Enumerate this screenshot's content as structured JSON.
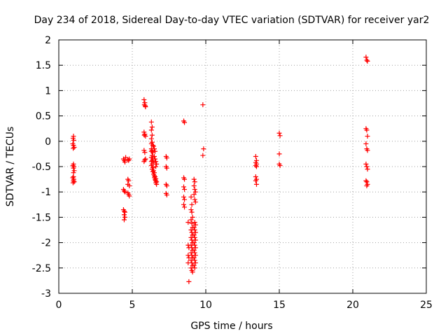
{
  "chart_data": {
    "type": "scatter",
    "title": "Day 234 of 2018, Sidereal Day-to-day VTEC variation (SDTVAR) for receiver yar2",
    "xlabel": "GPS time / hours",
    "ylabel": "SDTVAR / TECUs",
    "xlim": [
      0,
      25
    ],
    "ylim": [
      -3,
      2
    ],
    "grid": true,
    "marker": "+",
    "color": "#ff0000",
    "x_ticks": [
      0,
      5,
      10,
      15,
      20,
      25
    ],
    "x_tick_labels": [
      "0",
      "5",
      "10",
      "15",
      "20",
      "25"
    ],
    "y_ticks": [
      -3,
      -2.5,
      -2,
      -1.5,
      -1,
      -0.5,
      0,
      0.5,
      1,
      1.5,
      2
    ],
    "y_tick_labels": [
      "-3",
      "-2.5",
      "-2",
      "-1.5",
      "-1",
      "-0.5",
      "0",
      "0.5",
      "1",
      "1.5",
      "2"
    ],
    "points": [
      [
        1.0,
        0.1
      ],
      [
        0.97,
        0.06
      ],
      [
        1.02,
        0.02
      ],
      [
        0.95,
        -0.05
      ],
      [
        1.0,
        -0.08
      ],
      [
        1.05,
        -0.12
      ],
      [
        0.98,
        -0.14
      ],
      [
        1.0,
        -0.45
      ],
      [
        0.96,
        -0.48
      ],
      [
        1.03,
        -0.5
      ],
      [
        1.0,
        -0.53
      ],
      [
        1.05,
        -0.58
      ],
      [
        1.0,
        -0.62
      ],
      [
        1.0,
        -0.7
      ],
      [
        0.95,
        -0.72
      ],
      [
        1.02,
        -0.75
      ],
      [
        1.0,
        -0.78
      ],
      [
        1.05,
        -0.8
      ],
      [
        0.97,
        -0.82
      ],
      [
        4.4,
        -0.35
      ],
      [
        4.45,
        -0.38
      ],
      [
        4.5,
        -0.41
      ],
      [
        4.55,
        -0.32
      ],
      [
        4.4,
        -0.95
      ],
      [
        4.45,
        -0.98
      ],
      [
        4.5,
        -1.0
      ],
      [
        4.4,
        -1.35
      ],
      [
        4.45,
        -1.38
      ],
      [
        4.5,
        -1.4
      ],
      [
        4.45,
        -1.45
      ],
      [
        4.5,
        -1.5
      ],
      [
        4.45,
        -1.55
      ],
      [
        4.7,
        -0.36
      ],
      [
        4.75,
        -0.38
      ],
      [
        4.8,
        -0.35
      ],
      [
        4.7,
        -0.75
      ],
      [
        4.75,
        -0.78
      ],
      [
        4.7,
        -0.85
      ],
      [
        4.8,
        -0.88
      ],
      [
        4.7,
        -1.02
      ],
      [
        4.75,
        -1.05
      ],
      [
        4.8,
        -1.08
      ],
      [
        5.8,
        0.82
      ],
      [
        5.85,
        0.76
      ],
      [
        5.82,
        0.72
      ],
      [
        5.88,
        0.7
      ],
      [
        5.9,
        0.68
      ],
      [
        5.8,
        0.18
      ],
      [
        5.85,
        0.14
      ],
      [
        5.82,
        0.12
      ],
      [
        5.9,
        0.1
      ],
      [
        5.8,
        -0.18
      ],
      [
        5.85,
        -0.22
      ],
      [
        5.9,
        -0.35
      ],
      [
        5.85,
        -0.37
      ],
      [
        5.8,
        -0.4
      ],
      [
        6.3,
        0.38
      ],
      [
        6.35,
        0.28
      ],
      [
        6.3,
        0.22
      ],
      [
        6.35,
        0.12
      ],
      [
        6.3,
        0.05
      ],
      [
        6.35,
        -0.02
      ],
      [
        6.3,
        -0.05
      ],
      [
        6.4,
        -0.08
      ],
      [
        6.3,
        -0.15
      ],
      [
        6.35,
        -0.18
      ],
      [
        6.3,
        -0.2
      ],
      [
        6.4,
        -0.22
      ],
      [
        6.35,
        -0.28
      ],
      [
        6.3,
        -0.32
      ],
      [
        6.4,
        -0.35
      ],
      [
        6.35,
        -0.38
      ],
      [
        6.3,
        -0.4
      ],
      [
        6.45,
        -0.42
      ],
      [
        6.35,
        -0.45
      ],
      [
        6.3,
        -0.48
      ],
      [
        6.4,
        -0.52
      ],
      [
        6.35,
        -0.55
      ],
      [
        6.45,
        -0.58
      ],
      [
        6.4,
        -0.6
      ],
      [
        6.5,
        -0.62
      ],
      [
        6.45,
        -0.65
      ],
      [
        6.5,
        -0.68
      ],
      [
        6.55,
        -0.7
      ],
      [
        6.5,
        -0.72
      ],
      [
        6.6,
        -0.74
      ],
      [
        6.55,
        -0.76
      ],
      [
        6.6,
        -0.78
      ],
      [
        6.65,
        -0.8
      ],
      [
        6.6,
        -0.82
      ],
      [
        6.65,
        -0.85
      ],
      [
        6.5,
        -0.3
      ],
      [
        6.55,
        -0.35
      ],
      [
        6.6,
        -0.4
      ],
      [
        6.65,
        -0.45
      ],
      [
        6.6,
        -0.5
      ],
      [
        6.45,
        -0.1
      ],
      [
        6.5,
        -0.15
      ],
      [
        6.55,
        -0.2
      ],
      [
        7.3,
        -0.3
      ],
      [
        7.35,
        -0.33
      ],
      [
        7.3,
        -0.5
      ],
      [
        7.35,
        -0.53
      ],
      [
        7.3,
        -0.85
      ],
      [
        7.35,
        -0.88
      ],
      [
        7.3,
        -1.03
      ],
      [
        7.35,
        -1.06
      ],
      [
        8.5,
        0.4
      ],
      [
        8.55,
        0.37
      ],
      [
        8.5,
        -0.72
      ],
      [
        8.55,
        -0.75
      ],
      [
        8.5,
        -0.9
      ],
      [
        8.55,
        -0.95
      ],
      [
        8.5,
        -1.1
      ],
      [
        8.55,
        -1.15
      ],
      [
        8.5,
        -1.25
      ],
      [
        8.55,
        -1.3
      ],
      [
        8.8,
        -1.6
      ],
      [
        8.8,
        -2.05
      ],
      [
        8.85,
        -2.1
      ],
      [
        8.8,
        -2.25
      ],
      [
        8.85,
        -2.3
      ],
      [
        8.8,
        -2.4
      ],
      [
        8.85,
        -2.77
      ],
      [
        9.0,
        -1.1
      ],
      [
        9.05,
        -1.25
      ],
      [
        9.0,
        -1.35
      ],
      [
        9.05,
        -1.4
      ],
      [
        9.1,
        -1.5
      ],
      [
        9.0,
        -1.55
      ],
      [
        9.05,
        -1.62
      ],
      [
        9.1,
        -1.7
      ],
      [
        9.0,
        -1.75
      ],
      [
        9.05,
        -1.8
      ],
      [
        9.1,
        -1.85
      ],
      [
        9.0,
        -1.9
      ],
      [
        9.05,
        -1.95
      ],
      [
        9.1,
        -2.0
      ],
      [
        9.0,
        -2.05
      ],
      [
        9.05,
        -2.1
      ],
      [
        9.1,
        -2.15
      ],
      [
        9.0,
        -2.2
      ],
      [
        9.05,
        -2.25
      ],
      [
        9.1,
        -2.3
      ],
      [
        9.0,
        -2.35
      ],
      [
        9.05,
        -2.4
      ],
      [
        9.1,
        -2.45
      ],
      [
        9.0,
        -2.5
      ],
      [
        9.05,
        -2.55
      ],
      [
        9.1,
        -2.58
      ],
      [
        9.2,
        -0.75
      ],
      [
        9.25,
        -0.8
      ],
      [
        9.2,
        -0.88
      ],
      [
        9.25,
        -0.95
      ],
      [
        9.3,
        -1.0
      ],
      [
        9.2,
        -1.05
      ],
      [
        9.25,
        -1.15
      ],
      [
        9.3,
        -1.2
      ],
      [
        9.25,
        -1.6
      ],
      [
        9.3,
        -1.65
      ],
      [
        9.2,
        -1.7
      ],
      [
        9.25,
        -1.75
      ],
      [
        9.3,
        -1.8
      ],
      [
        9.2,
        -1.85
      ],
      [
        9.25,
        -1.9
      ],
      [
        9.3,
        -1.95
      ],
      [
        9.2,
        -2.0
      ],
      [
        9.25,
        -2.05
      ],
      [
        9.3,
        -2.1
      ],
      [
        9.2,
        -2.15
      ],
      [
        9.25,
        -2.2
      ],
      [
        9.3,
        -2.25
      ],
      [
        9.2,
        -2.3
      ],
      [
        9.25,
        -2.35
      ],
      [
        9.3,
        -2.4
      ],
      [
        9.2,
        -2.45
      ],
      [
        9.25,
        -2.5
      ],
      [
        9.8,
        0.72
      ],
      [
        9.85,
        -0.15
      ],
      [
        9.8,
        -0.28
      ],
      [
        13.4,
        -0.3
      ],
      [
        13.45,
        -0.38
      ],
      [
        13.4,
        -0.42
      ],
      [
        13.45,
        -0.45
      ],
      [
        13.4,
        -0.48
      ],
      [
        13.45,
        -0.5
      ],
      [
        13.4,
        -0.7
      ],
      [
        13.45,
        -0.75
      ],
      [
        13.4,
        -0.78
      ],
      [
        13.45,
        -0.85
      ],
      [
        15.0,
        0.16
      ],
      [
        15.05,
        0.11
      ],
      [
        15.0,
        -0.25
      ],
      [
        15.0,
        -0.45
      ],
      [
        15.05,
        -0.48
      ],
      [
        20.9,
        1.66
      ],
      [
        20.95,
        1.6
      ],
      [
        21.0,
        1.58
      ],
      [
        20.9,
        0.25
      ],
      [
        20.95,
        0.22
      ],
      [
        21.0,
        0.1
      ],
      [
        20.9,
        -0.05
      ],
      [
        20.95,
        -0.15
      ],
      [
        21.0,
        -0.18
      ],
      [
        20.9,
        -0.45
      ],
      [
        20.95,
        -0.5
      ],
      [
        21.0,
        -0.55
      ],
      [
        20.9,
        -0.78
      ],
      [
        20.95,
        -0.8
      ],
      [
        21.0,
        -0.85
      ],
      [
        20.95,
        -0.88
      ]
    ]
  }
}
